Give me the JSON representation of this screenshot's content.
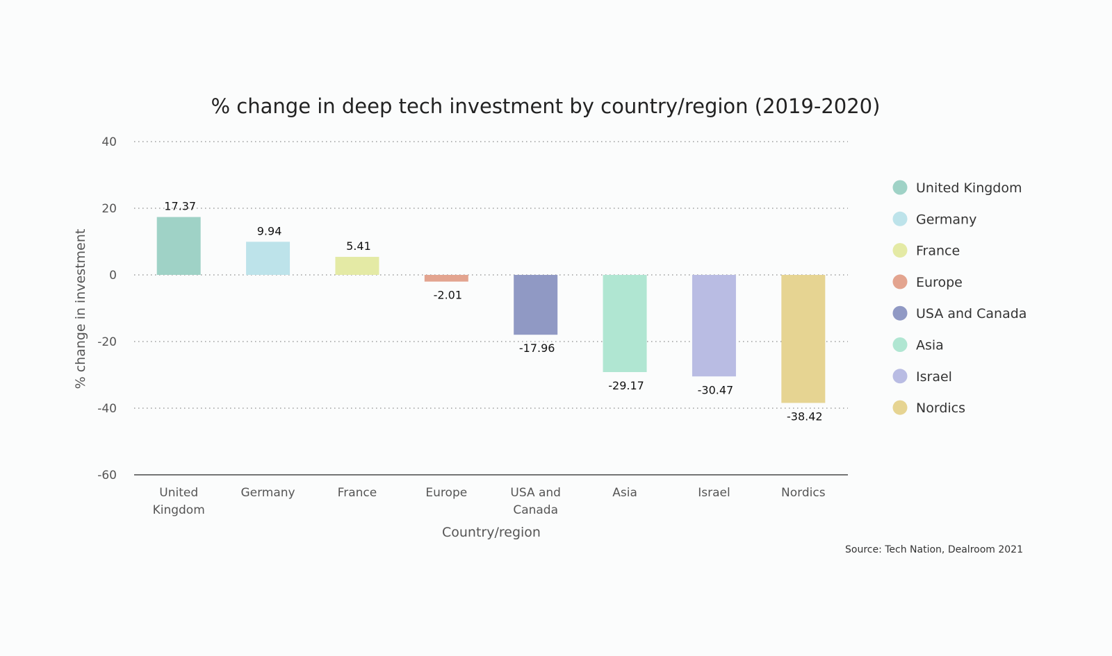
{
  "chart_data": {
    "type": "bar",
    "title": "% change in deep tech investment by country/region (2019-2020)",
    "xlabel": "Country/region",
    "ylabel": "% change in investment",
    "ylim": [
      -60,
      40
    ],
    "yticks": [
      40,
      20,
      0,
      -20,
      -40,
      -60
    ],
    "grid": true,
    "legend_placement": "right",
    "categories": [
      "United Kingdom",
      "Germany",
      "France",
      "Europe",
      "USA and Canada",
      "Asia",
      "Israel",
      "Nordics"
    ],
    "category_tick_labels": [
      [
        "United",
        "Kingdom"
      ],
      [
        "Germany"
      ],
      [
        "France"
      ],
      [
        "Europe"
      ],
      [
        "USA and",
        "Canada"
      ],
      [
        "Asia"
      ],
      [
        "Israel"
      ],
      [
        "Nordics"
      ]
    ],
    "values": [
      17.37,
      9.94,
      5.41,
      -2.01,
      -17.96,
      -29.17,
      -30.47,
      -38.42
    ],
    "data_labels": [
      "17.37",
      "9.94",
      "5.41",
      "-2.01",
      "-17.96",
      "-29.17",
      "-30.47",
      "-38.42"
    ],
    "colors": [
      "#9fd2c6",
      "#bde3ea",
      "#e4eaa5",
      "#e3a48f",
      "#9099c4",
      "#b0e6d2",
      "#b9bce3",
      "#e6d492"
    ],
    "legend": [
      "United Kingdom",
      "Germany",
      "France",
      "Europe",
      "USA and Canada",
      "Asia",
      "Israel",
      "Nordics"
    ],
    "source": "Source: Tech Nation, Dealroom 2021"
  }
}
